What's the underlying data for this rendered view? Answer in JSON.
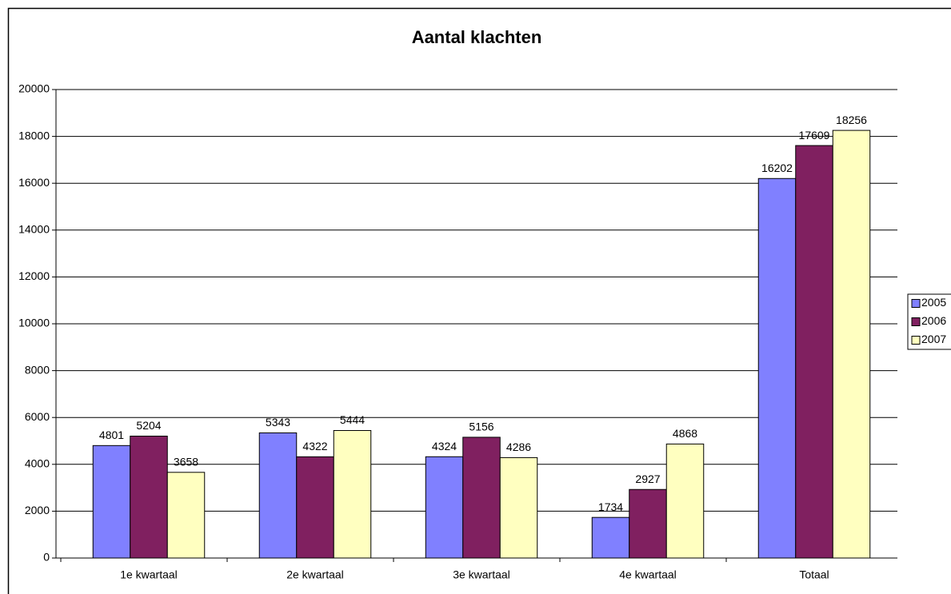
{
  "chart_data": {
    "type": "bar",
    "title": "Aantal klachten",
    "categories": [
      "1e kwartaal",
      "2e kwartaal",
      "3e kwartaal",
      "4e kwartaal",
      "Totaal"
    ],
    "series": [
      {
        "name": "2005",
        "color": "#8080ff",
        "values": [
          4801,
          5343,
          4324,
          1734,
          16202
        ]
      },
      {
        "name": "2006",
        "color": "#802060",
        "values": [
          5204,
          4322,
          5156,
          2927,
          17609
        ]
      },
      {
        "name": "2007",
        "color": "#ffffc0",
        "values": [
          3658,
          5444,
          4286,
          4868,
          18256
        ]
      }
    ],
    "ylim": [
      0,
      20000
    ],
    "yticks": [
      0,
      2000,
      4000,
      6000,
      8000,
      10000,
      12000,
      14000,
      16000,
      18000,
      20000
    ],
    "grid": true,
    "legend": "right"
  }
}
